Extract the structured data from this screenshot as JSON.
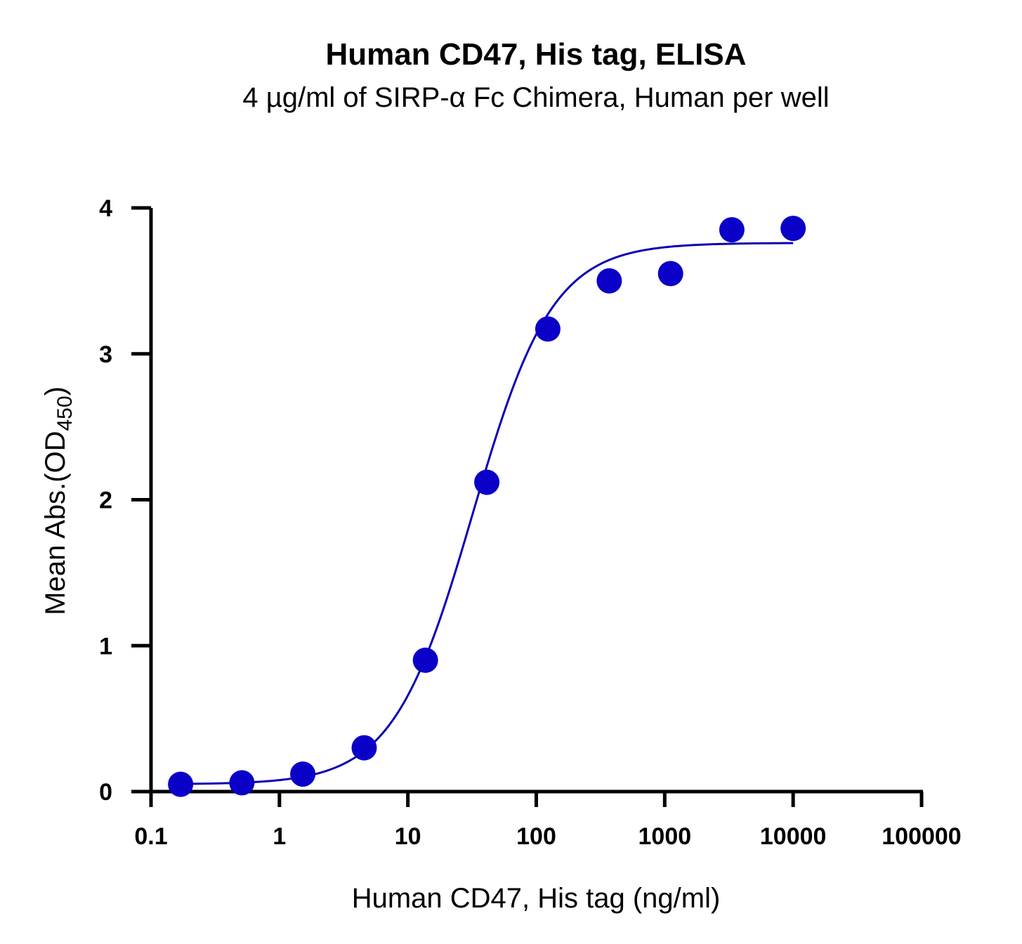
{
  "chart_data": {
    "type": "scatter",
    "title": "Human CD47, His tag, ELISA",
    "subtitle": "4 µg/ml of SIRP-α Fc Chimera, Human per well",
    "xlabel": "Human CD47, His tag (ng/ml)",
    "ylabel": {
      "main": "Mean Abs.(OD",
      "subscript": "450",
      "close": ")"
    },
    "x_scale": "log",
    "xlim": [
      0.1,
      100000
    ],
    "ylim": [
      0,
      4
    ],
    "x_ticks": [
      0.1,
      1,
      10,
      100,
      1000,
      10000,
      100000
    ],
    "x_tick_labels": [
      "0.1",
      "1",
      "10",
      "100",
      "1000",
      "10000",
      "100000"
    ],
    "y_ticks": [
      0,
      1,
      2,
      3,
      4
    ],
    "y_tick_labels": [
      "0",
      "1",
      "2",
      "3",
      "4"
    ],
    "grid": false,
    "colors": {
      "points": "#0a00c8",
      "curve": "#0a00b4",
      "axes": "#000000"
    },
    "series": [
      {
        "points": [
          {
            "x": 0.17,
            "y": 0.05
          },
          {
            "x": 0.51,
            "y": 0.06
          },
          {
            "x": 1.52,
            "y": 0.12
          },
          {
            "x": 4.57,
            "y": 0.3
          },
          {
            "x": 13.7,
            "y": 0.9
          },
          {
            "x": 41.2,
            "y": 2.12
          },
          {
            "x": 123,
            "y": 3.17
          },
          {
            "x": 370,
            "y": 3.5
          },
          {
            "x": 1111,
            "y": 3.55
          },
          {
            "x": 3333,
            "y": 3.85
          },
          {
            "x": 10000,
            "y": 3.86
          }
        ]
      }
    ],
    "fit_curve": {
      "model": "4PL",
      "bottom": 0.05,
      "top": 3.76,
      "ec50": 32,
      "hill": 1.4,
      "x_range": [
        0.17,
        10000
      ]
    }
  }
}
